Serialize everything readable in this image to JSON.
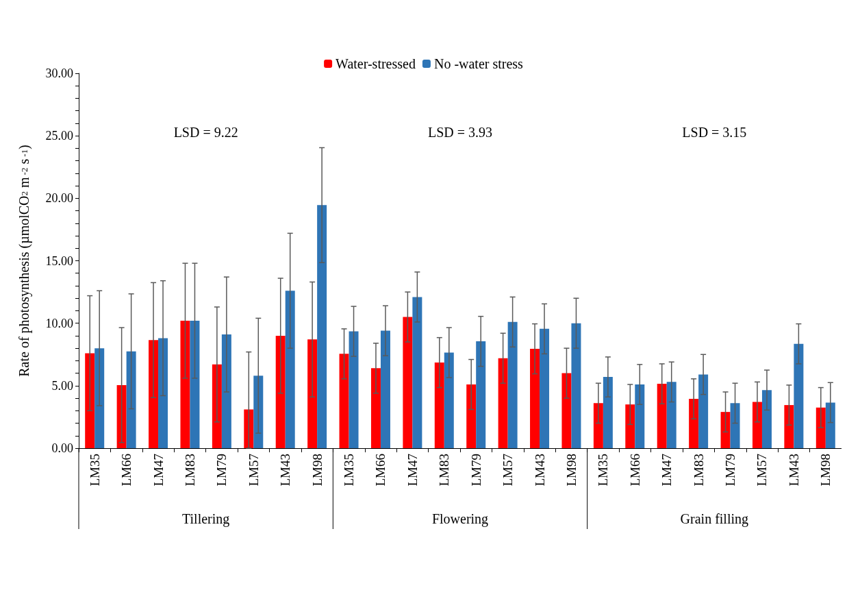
{
  "chart_data": {
    "type": "bar",
    "ylabel": "Rate of photosynthesis (µmolCO$_{2}$ m$^{-2}$ s$^{-1}$)",
    "categories": [
      "LM35",
      "LM66",
      "LM47",
      "LM83",
      "LM79",
      "LM57",
      "LM43",
      "LM98",
      "LM35",
      "LM66",
      "LM47",
      "LM83",
      "LM79",
      "LM57",
      "LM43",
      "LM98",
      "LM35",
      "LM66",
      "LM47",
      "LM83",
      "LM79",
      "LM57",
      "LM43",
      "LM98"
    ],
    "series": [
      {
        "name": "Water-stressed",
        "color": "#ff0000",
        "values": [
          7.6,
          5.05,
          8.65,
          10.2,
          6.7,
          3.1,
          9.0,
          8.7,
          7.55,
          6.4,
          10.5,
          6.85,
          5.1,
          7.2,
          7.95,
          6.0,
          3.6,
          3.5,
          5.15,
          3.95,
          2.9,
          3.7,
          3.45,
          3.25
        ],
        "errors": [
          4.6,
          4.6,
          4.6,
          4.6,
          4.6,
          [
            0,
            7.7
          ],
          4.6,
          4.6,
          2.0,
          2.0,
          2.0,
          2.0,
          2.0,
          2.0,
          2.0,
          2.0,
          1.6,
          1.6,
          1.6,
          1.6,
          1.6,
          1.6,
          1.6,
          1.6
        ]
      },
      {
        "name": "No -water stress",
        "color": "#2e75b6",
        "values": [
          8.0,
          7.75,
          8.8,
          10.2,
          9.1,
          5.8,
          12.6,
          19.45,
          9.35,
          9.4,
          12.1,
          7.65,
          8.55,
          10.1,
          9.55,
          10.0,
          5.7,
          5.1,
          5.3,
          5.9,
          3.6,
          4.65,
          8.35,
          3.65
        ],
        "errors": [
          4.6,
          4.6,
          4.6,
          4.6,
          4.6,
          4.6,
          4.6,
          4.6,
          2.0,
          2.0,
          2.0,
          2.0,
          2.0,
          2.0,
          2.0,
          2.0,
          1.6,
          1.6,
          1.6,
          1.6,
          1.6,
          1.6,
          1.6,
          1.6
        ]
      }
    ],
    "ylim": [
      0,
      30
    ],
    "yticks": [
      {
        "value": 0,
        "label": "0.00"
      },
      {
        "value": 1,
        "label": null
      },
      {
        "value": 2,
        "label": null
      },
      {
        "value": 3,
        "label": null
      },
      {
        "value": 4,
        "label": null
      },
      {
        "value": 5,
        "label": "5.00"
      },
      {
        "value": 6,
        "label": null
      },
      {
        "value": 7,
        "label": null
      },
      {
        "value": 8,
        "label": null
      },
      {
        "value": 9,
        "label": null
      },
      {
        "value": 10,
        "label": "10.00"
      },
      {
        "value": 11,
        "label": null
      },
      {
        "value": 12,
        "label": null
      },
      {
        "value": 13,
        "label": null
      },
      {
        "value": 14,
        "label": null
      },
      {
        "value": 15,
        "label": "15.00"
      },
      {
        "value": 16,
        "label": null
      },
      {
        "value": 17,
        "label": null
      },
      {
        "value": 18,
        "label": null
      },
      {
        "value": 19,
        "label": null
      },
      {
        "value": 20,
        "label": "20.00"
      },
      {
        "value": 21,
        "label": null
      },
      {
        "value": 22,
        "label": null
      },
      {
        "value": 23,
        "label": null
      },
      {
        "value": 24,
        "label": null
      },
      {
        "value": 25,
        "label": "25.00"
      },
      {
        "value": 26,
        "label": null
      },
      {
        "value": 27,
        "label": null
      },
      {
        "value": 28,
        "label": null
      },
      {
        "value": 29,
        "label": null
      },
      {
        "value": 30,
        "label": "30.00"
      }
    ],
    "annotations": [
      "LSD = 9.22",
      "LSD = 3.93",
      "LSD = 3.15",
      "Tillering",
      "Flowering",
      "Grain filling"
    ],
    "legend": "top",
    "grid": false
  }
}
